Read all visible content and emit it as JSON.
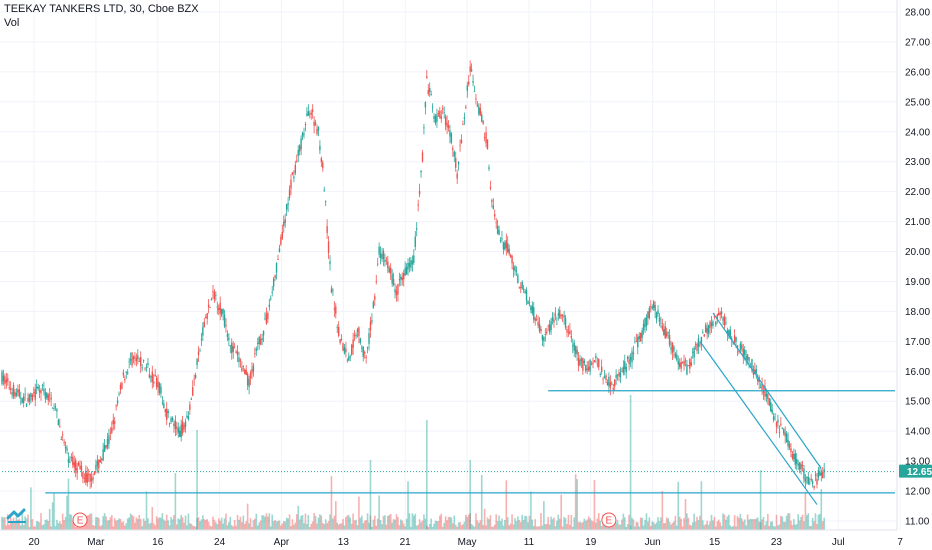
{
  "header": {
    "title": "TEEKAY TANKERS LTD, 30, Cboe BZX",
    "volume_label": "Vol"
  },
  "colors": {
    "up": "#26a69a",
    "down": "#ef5350",
    "trendline": "#2aa5c9",
    "price_tag": "#26a69a",
    "grid": "#f0f3fa"
  },
  "chart_data": {
    "type": "candlestick",
    "title": "TEEKAY TANKERS LTD, 30, Cboe BZX",
    "y_axis": {
      "side": "right",
      "ylim": [
        10.7,
        28.4
      ],
      "ticks": [
        "11.00",
        "12.00",
        "13.00",
        "14.00",
        "15.00",
        "16.00",
        "17.00",
        "18.00",
        "19.00",
        "20.00",
        "21.00",
        "22.00",
        "23.00",
        "24.00",
        "25.00",
        "26.00",
        "27.00",
        "28.00"
      ]
    },
    "x_axis": {
      "ticks": [
        "20",
        "Mar",
        "16",
        "24",
        "Apr",
        "13",
        "21",
        "May",
        "11",
        "19",
        "Jun",
        "15",
        "23",
        "Jul",
        "7"
      ]
    },
    "last_price": "12.65",
    "price_path": [
      [
        0,
        15.8
      ],
      [
        3,
        15.3
      ],
      [
        6,
        15.0
      ],
      [
        9,
        15.4
      ],
      [
        12,
        14.9
      ],
      [
        15,
        13.2
      ],
      [
        18,
        12.7
      ],
      [
        20,
        12.4
      ],
      [
        22,
        12.8
      ],
      [
        25,
        13.8
      ],
      [
        28,
        15.8
      ],
      [
        30,
        16.4
      ],
      [
        33,
        16.2
      ],
      [
        36,
        15.6
      ],
      [
        38,
        14.6
      ],
      [
        41,
        13.9
      ],
      [
        43,
        14.6
      ],
      [
        45,
        16.2
      ],
      [
        47,
        17.8
      ],
      [
        49,
        18.6
      ],
      [
        51,
        17.9
      ],
      [
        53,
        16.8
      ],
      [
        55,
        16.3
      ],
      [
        57,
        15.6
      ],
      [
        59,
        16.8
      ],
      [
        61,
        17.7
      ],
      [
        63,
        19.2
      ],
      [
        65,
        20.8
      ],
      [
        67,
        22.5
      ],
      [
        68,
        23.0
      ],
      [
        70,
        24.2
      ],
      [
        71,
        24.8
      ],
      [
        73,
        24.0
      ],
      [
        74,
        22.8
      ],
      [
        76,
        18.8
      ],
      [
        78,
        17.1
      ],
      [
        80,
        16.4
      ],
      [
        82,
        17.5
      ],
      [
        84,
        16.3
      ],
      [
        86,
        18.6
      ],
      [
        87,
        20.0
      ],
      [
        89,
        19.6
      ],
      [
        91,
        18.6
      ],
      [
        93,
        19.4
      ],
      [
        95,
        19.8
      ],
      [
        97,
        23.2
      ],
      [
        98,
        25.7
      ],
      [
        100,
        24.4
      ],
      [
        102,
        24.6
      ],
      [
        104,
        23.6
      ],
      [
        105,
        22.6
      ],
      [
        107,
        24.9
      ],
      [
        108,
        26.2
      ],
      [
        110,
        24.8
      ],
      [
        112,
        23.6
      ],
      [
        113,
        21.6
      ],
      [
        115,
        20.3
      ],
      [
        117,
        20.1
      ],
      [
        119,
        19.1
      ],
      [
        121,
        18.5
      ],
      [
        123,
        17.8
      ],
      [
        125,
        17.1
      ],
      [
        127,
        17.6
      ],
      [
        129,
        17.9
      ],
      [
        131,
        17.2
      ],
      [
        133,
        16.4
      ],
      [
        135,
        16.1
      ],
      [
        137,
        16.4
      ],
      [
        139,
        15.8
      ],
      [
        141,
        15.6
      ],
      [
        143,
        16.0
      ],
      [
        145,
        16.4
      ],
      [
        147,
        17.1
      ],
      [
        149,
        17.8
      ],
      [
        150,
        18.3
      ],
      [
        152,
        17.6
      ],
      [
        154,
        17.0
      ],
      [
        156,
        16.4
      ],
      [
        158,
        16.1
      ],
      [
        160,
        16.7
      ],
      [
        162,
        17.3
      ],
      [
        164,
        17.6
      ],
      [
        166,
        17.9
      ],
      [
        167,
        17.5
      ],
      [
        169,
        17.1
      ],
      [
        171,
        16.6
      ],
      [
        173,
        16.2
      ],
      [
        175,
        15.6
      ],
      [
        177,
        15.0
      ],
      [
        179,
        14.2
      ],
      [
        181,
        13.7
      ],
      [
        183,
        13.1
      ],
      [
        185,
        12.6
      ],
      [
        186,
        12.3
      ],
      [
        187,
        12.2
      ],
      [
        188,
        12.4
      ],
      [
        189,
        12.65
      ]
    ],
    "bars_count": 190,
    "x_domain": [
      0,
      206
    ],
    "trendlines": [
      {
        "name": "support",
        "from": [
          10,
          11.94
        ],
        "to": [
          206,
          11.94
        ]
      },
      {
        "name": "resistance",
        "from": [
          126,
          15.35
        ],
        "to": [
          206,
          15.35
        ]
      },
      {
        "name": "channel-upper",
        "from": [
          164,
          17.95
        ],
        "to": [
          189,
          12.75
        ]
      },
      {
        "name": "channel-lower",
        "from": [
          161,
          17.0
        ],
        "to": [
          188,
          11.55
        ]
      },
      {
        "name": "last-price-line",
        "from": [
          0,
          12.65
        ],
        "to": [
          206,
          12.65
        ]
      }
    ],
    "earnings_markers": [
      {
        "label": "E",
        "x": 18
      },
      {
        "label": "E",
        "x": 140
      }
    ]
  }
}
